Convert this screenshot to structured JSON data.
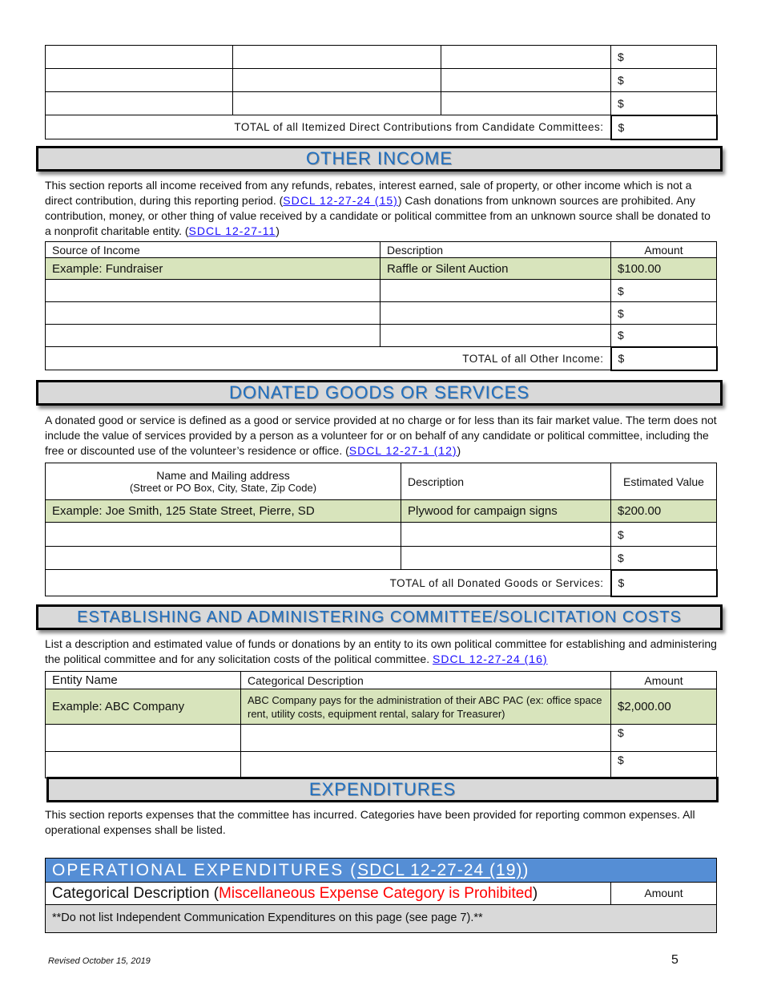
{
  "candidate_committees": {
    "rows": [
      {
        "amount": "$"
      },
      {
        "amount": "$"
      },
      {
        "amount": "$"
      }
    ],
    "total_label": "TOTAL of all Itemized Direct Contributions from Candidate Committees:",
    "total_amount": "$"
  },
  "other_income": {
    "title": "OTHER INCOME",
    "p1": "This section reports all income received from any refunds, rebates, interest earned, sale of property, or other income which is not a direct contribution, during this reporting period.  (",
    "link1": "SDCL 12-27-24 (15)",
    "p2": ") Cash donations from unknown sources are prohibited. Any contribution, money, or other thing of value received by a candidate or political committee from an unknown source shall be donated to a nonprofit charitable entity. (",
    "link2": "SDCL 12-27-11",
    "p3": ")",
    "headers": [
      "Source of Income",
      "Description",
      "Amount"
    ],
    "example": [
      "Example: Fundraiser",
      "Raffle or Silent Auction",
      "$100.00"
    ],
    "rows": [
      {
        "amount": "$"
      },
      {
        "amount": "$"
      },
      {
        "amount": "$"
      }
    ],
    "total_label": "TOTAL of all Other Income:",
    "total_amount": "$"
  },
  "donated": {
    "title": "DONATED GOODS OR SERVICES",
    "p1": "A donated good or service is defined as a good or service provided at no charge or for less than its fair market value. The term does not include the value of services provided by a person as a volunteer for or on behalf of any candidate or political committee, including the free or discounted use of the volunteer’s residence or office. (",
    "link1": "SDCL 12-27-1 (12)",
    "p2": ")",
    "header_name": "Name and Mailing address",
    "header_name_sub": "(Street or PO Box, City, State, Zip Code)",
    "header_desc": "Description",
    "header_value": "Estimated Value",
    "example": [
      "Example: Joe Smith, 125 State Street, Pierre, SD",
      "Plywood for campaign signs",
      "$200.00"
    ],
    "rows": [
      {
        "amount": "$"
      },
      {
        "amount": "$"
      }
    ],
    "total_label": "TOTAL of all Donated Goods or Services:",
    "total_amount": "$"
  },
  "establishing": {
    "title": "ESTABLISHING AND ADMINISTERING COMMITTEE/SOLICITATION COSTS",
    "p1": "List a description and estimated value of funds or donations by an entity to its own political committee for establishing and administering the political committee and for any solicitation costs of the political committee. ",
    "link1": "SDCL 12-27-24 (16)",
    "headers": [
      "Entity Name",
      "Categorical Description",
      "Amount"
    ],
    "example": [
      "Example: ABC Company",
      "ABC Company pays for the administration of their ABC PAC (ex: office space rent, utility costs, equipment rental, salary for Treasurer)",
      "$2,000.00"
    ],
    "rows": [
      {
        "amount": "$"
      },
      {
        "amount": "$"
      }
    ]
  },
  "expenditures": {
    "title": "EXPENDITURES",
    "p1": "This section reports expenses that the committee has incurred.  Categories have been provided for reporting common expenses.  All operational expenses shall be listed."
  },
  "operational": {
    "title": "OPERATIONAL EXPENDITURES (",
    "link": "SDCL 12-27-24 (19)",
    "title_end": ")",
    "cat_label": "Categorical Description (",
    "cat_warning": "Miscellaneous Expense Category is Prohibited",
    "cat_end": ")",
    "amount_header": "Amount",
    "note": "**Do not list Independent Communication Expenditures on this page (see page 7).**",
    "colors": {
      "header_bg": "#558ed5",
      "warning": "#ff0000"
    }
  },
  "footer": {
    "revised": "Revised October 15, 2019",
    "page": "5"
  },
  "colors": {
    "example_row": "#d8e4bc",
    "section_header_bg": "#d9d9d9",
    "title_blue": "#1f6fc0"
  }
}
